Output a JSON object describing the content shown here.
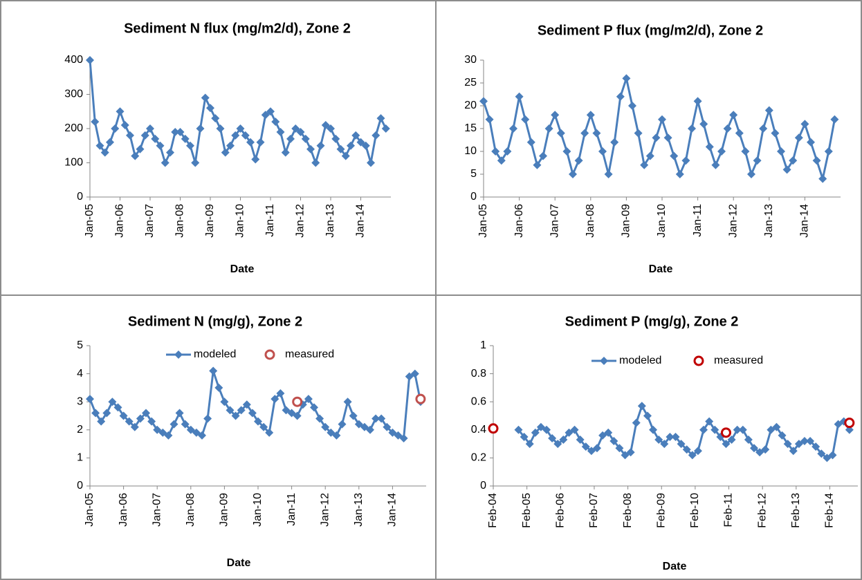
{
  "chart_data": [
    {
      "type": "line",
      "title": "Sediment N flux (mg/m2/d), Zone 2",
      "x_label": "Date",
      "x": [
        "2005-01",
        "2005-03",
        "2005-05",
        "2005-07",
        "2005-09",
        "2005-11",
        "2006-01",
        "2006-03",
        "2006-05",
        "2006-07",
        "2006-09",
        "2006-11",
        "2007-01",
        "2007-03",
        "2007-05",
        "2007-07",
        "2007-09",
        "2007-11",
        "2008-01",
        "2008-03",
        "2008-05",
        "2008-07",
        "2008-09",
        "2008-11",
        "2009-01",
        "2009-03",
        "2009-05",
        "2009-07",
        "2009-09",
        "2009-11",
        "2010-01",
        "2010-03",
        "2010-05",
        "2010-07",
        "2010-09",
        "2010-11",
        "2011-01",
        "2011-03",
        "2011-05",
        "2011-07",
        "2011-09",
        "2011-11",
        "2012-01",
        "2012-03",
        "2012-05",
        "2012-07",
        "2012-09",
        "2012-11",
        "2013-01",
        "2013-03",
        "2013-05",
        "2013-07",
        "2013-09",
        "2013-11",
        "2014-01",
        "2014-03",
        "2014-05",
        "2014-07",
        "2014-09",
        "2014-11"
      ],
      "series": [
        {
          "color": "#4a7ebb",
          "marker": "diamond",
          "line": true,
          "values": [
            400,
            220,
            150,
            130,
            160,
            200,
            250,
            210,
            180,
            120,
            140,
            180,
            200,
            170,
            150,
            100,
            130,
            190,
            190,
            170,
            150,
            100,
            200,
            290,
            260,
            230,
            200,
            130,
            150,
            180,
            200,
            180,
            160,
            110,
            160,
            240,
            250,
            220,
            190,
            130,
            170,
            200,
            190,
            170,
            140,
            100,
            150,
            210,
            200,
            170,
            140,
            120,
            150,
            180,
            160,
            150,
            100,
            180,
            230,
            200
          ]
        }
      ],
      "xlim": [
        "2005-01",
        "2015-01"
      ],
      "xticks": [
        {
          "value": "2005-01",
          "label": "Jan-05"
        },
        {
          "value": "2006-01",
          "label": "Jan-06"
        },
        {
          "value": "2007-01",
          "label": "Jan-07"
        },
        {
          "value": "2008-01",
          "label": "Jan-08"
        },
        {
          "value": "2009-01",
          "label": "Jan-09"
        },
        {
          "value": "2010-01",
          "label": "Jan-10"
        },
        {
          "value": "2011-01",
          "label": "Jan-11"
        },
        {
          "value": "2012-01",
          "label": "Jan-12"
        },
        {
          "value": "2013-01",
          "label": "Jan-13"
        },
        {
          "value": "2014-01",
          "label": "Jan-14"
        }
      ],
      "ylim": [
        0,
        400
      ],
      "yticks": [
        0,
        100,
        200,
        300,
        400
      ],
      "grid": false
    },
    {
      "type": "line",
      "title": "Sediment P flux (mg/m2/d), Zone 2",
      "x_label": "Date",
      "x": [
        "2005-01",
        "2005-03",
        "2005-05",
        "2005-07",
        "2005-09",
        "2005-11",
        "2006-01",
        "2006-03",
        "2006-05",
        "2006-07",
        "2006-09",
        "2006-11",
        "2007-01",
        "2007-03",
        "2007-05",
        "2007-07",
        "2007-09",
        "2007-11",
        "2008-01",
        "2008-03",
        "2008-05",
        "2008-07",
        "2008-09",
        "2008-11",
        "2009-01",
        "2009-03",
        "2009-05",
        "2009-07",
        "2009-09",
        "2009-11",
        "2010-01",
        "2010-03",
        "2010-05",
        "2010-07",
        "2010-09",
        "2010-11",
        "2011-01",
        "2011-03",
        "2011-05",
        "2011-07",
        "2011-09",
        "2011-11",
        "2012-01",
        "2012-03",
        "2012-05",
        "2012-07",
        "2012-09",
        "2012-11",
        "2013-01",
        "2013-03",
        "2013-05",
        "2013-07",
        "2013-09",
        "2013-11",
        "2014-01",
        "2014-03",
        "2014-05",
        "2014-07",
        "2014-09",
        "2014-11"
      ],
      "series": [
        {
          "color": "#4a7ebb",
          "marker": "diamond",
          "line": true,
          "values": [
            21,
            17,
            10,
            8,
            10,
            15,
            22,
            17,
            12,
            7,
            9,
            15,
            18,
            14,
            10,
            5,
            8,
            14,
            18,
            14,
            10,
            5,
            12,
            22,
            26,
            20,
            14,
            7,
            9,
            13,
            17,
            13,
            9,
            5,
            8,
            15,
            21,
            16,
            11,
            7,
            10,
            15,
            18,
            14,
            10,
            5,
            8,
            15,
            19,
            14,
            10,
            6,
            8,
            13,
            16,
            12,
            8,
            4,
            10,
            17
          ]
        }
      ],
      "xlim": [
        "2005-01",
        "2015-01"
      ],
      "xticks": [
        {
          "value": "2005-01",
          "label": "Jan-05"
        },
        {
          "value": "2006-01",
          "label": "Jan-06"
        },
        {
          "value": "2007-01",
          "label": "Jan-07"
        },
        {
          "value": "2008-01",
          "label": "Jan-08"
        },
        {
          "value": "2009-01",
          "label": "Jan-09"
        },
        {
          "value": "2010-01",
          "label": "Jan-10"
        },
        {
          "value": "2011-01",
          "label": "Jan-11"
        },
        {
          "value": "2012-01",
          "label": "Jan-12"
        },
        {
          "value": "2013-01",
          "label": "Jan-13"
        },
        {
          "value": "2014-01",
          "label": "Jan-14"
        }
      ],
      "ylim": [
        0,
        30
      ],
      "yticks": [
        0,
        5,
        10,
        15,
        20,
        25,
        30
      ],
      "grid": false
    },
    {
      "type": "line",
      "title": "Sediment N (mg/g), Zone 2",
      "x_label": "Date",
      "legend": "top",
      "x": [
        "2005-01",
        "2005-03",
        "2005-05",
        "2005-07",
        "2005-09",
        "2005-11",
        "2006-01",
        "2006-03",
        "2006-05",
        "2006-07",
        "2006-09",
        "2006-11",
        "2007-01",
        "2007-03",
        "2007-05",
        "2007-07",
        "2007-09",
        "2007-11",
        "2008-01",
        "2008-03",
        "2008-05",
        "2008-07",
        "2008-09",
        "2008-11",
        "2009-01",
        "2009-03",
        "2009-05",
        "2009-07",
        "2009-09",
        "2009-11",
        "2010-01",
        "2010-03",
        "2010-05",
        "2010-07",
        "2010-09",
        "2010-11",
        "2011-01",
        "2011-03",
        "2011-05",
        "2011-07",
        "2011-09",
        "2011-11",
        "2012-01",
        "2012-03",
        "2012-05",
        "2012-07",
        "2012-09",
        "2012-11",
        "2013-01",
        "2013-03",
        "2013-05",
        "2013-07",
        "2013-09",
        "2013-11",
        "2014-01",
        "2014-03",
        "2014-05",
        "2014-07",
        "2014-09",
        "2014-11"
      ],
      "series": [
        {
          "name": "modeled",
          "color": "#4a7ebb",
          "marker": "diamond",
          "line": true,
          "values": [
            3.1,
            2.6,
            2.3,
            2.6,
            3.0,
            2.8,
            2.5,
            2.3,
            2.1,
            2.4,
            2.6,
            2.3,
            2.0,
            1.9,
            1.8,
            2.2,
            2.6,
            2.2,
            2.0,
            1.9,
            1.8,
            2.4,
            4.1,
            3.5,
            3.0,
            2.7,
            2.5,
            2.7,
            2.9,
            2.6,
            2.3,
            2.1,
            1.9,
            3.1,
            3.3,
            2.7,
            2.6,
            2.5,
            2.9,
            3.1,
            2.8,
            2.4,
            2.1,
            1.9,
            1.8,
            2.2,
            3.0,
            2.5,
            2.2,
            2.1,
            2.0,
            2.4,
            2.4,
            2.1,
            1.9,
            1.8,
            1.7,
            3.9,
            4.0,
            3.0
          ]
        },
        {
          "name": "measured",
          "color": "#c0504d",
          "marker": "circle",
          "line": false,
          "x": [
            "2011-03",
            "2014-11"
          ],
          "values": [
            3.0,
            3.1
          ]
        }
      ],
      "xlim": [
        "2005-01",
        "2015-01"
      ],
      "xticks": [
        {
          "value": "2005-01",
          "label": "Jan-05"
        },
        {
          "value": "2006-01",
          "label": "Jan-06"
        },
        {
          "value": "2007-01",
          "label": "Jan-07"
        },
        {
          "value": "2008-01",
          "label": "Jan-08"
        },
        {
          "value": "2009-01",
          "label": "Jan-09"
        },
        {
          "value": "2010-01",
          "label": "Jan-10"
        },
        {
          "value": "2011-01",
          "label": "Jan-11"
        },
        {
          "value": "2012-01",
          "label": "Jan-12"
        },
        {
          "value": "2013-01",
          "label": "Jan-13"
        },
        {
          "value": "2014-01",
          "label": "Jan-14"
        }
      ],
      "ylim": [
        0,
        5
      ],
      "yticks": [
        0,
        1,
        2,
        3,
        4,
        5
      ],
      "grid": false
    },
    {
      "type": "line",
      "title": "Sediment P (mg/g), Zone 2",
      "x_label": "Date",
      "legend": "top",
      "x": [
        "2004-11",
        "2005-01",
        "2005-03",
        "2005-05",
        "2005-07",
        "2005-09",
        "2005-11",
        "2006-01",
        "2006-03",
        "2006-05",
        "2006-07",
        "2006-09",
        "2006-11",
        "2007-01",
        "2007-03",
        "2007-05",
        "2007-07",
        "2007-09",
        "2007-11",
        "2008-01",
        "2008-03",
        "2008-05",
        "2008-07",
        "2008-09",
        "2008-11",
        "2009-01",
        "2009-03",
        "2009-05",
        "2009-07",
        "2009-09",
        "2009-11",
        "2010-01",
        "2010-03",
        "2010-05",
        "2010-07",
        "2010-09",
        "2010-11",
        "2011-01",
        "2011-03",
        "2011-05",
        "2011-07",
        "2011-09",
        "2011-11",
        "2012-01",
        "2012-03",
        "2012-05",
        "2012-07",
        "2012-09",
        "2012-11",
        "2013-01",
        "2013-03",
        "2013-05",
        "2013-07",
        "2013-09",
        "2013-11",
        "2014-01",
        "2014-03",
        "2014-05",
        "2014-07",
        "2014-09"
      ],
      "series": [
        {
          "name": "modeled",
          "color": "#4a7ebb",
          "marker": "diamond",
          "line": true,
          "values": [
            0.4,
            0.35,
            0.3,
            0.38,
            0.42,
            0.4,
            0.34,
            0.3,
            0.33,
            0.38,
            0.4,
            0.33,
            0.28,
            0.25,
            0.27,
            0.36,
            0.38,
            0.32,
            0.27,
            0.22,
            0.24,
            0.45,
            0.57,
            0.5,
            0.4,
            0.33,
            0.3,
            0.35,
            0.35,
            0.3,
            0.26,
            0.22,
            0.25,
            0.4,
            0.46,
            0.4,
            0.35,
            0.3,
            0.33,
            0.4,
            0.4,
            0.33,
            0.27,
            0.24,
            0.26,
            0.4,
            0.42,
            0.36,
            0.3,
            0.25,
            0.3,
            0.32,
            0.32,
            0.28,
            0.23,
            0.2,
            0.22,
            0.44,
            0.46,
            0.4
          ]
        },
        {
          "name": "measured",
          "color": "#c00000",
          "marker": "circle",
          "line": false,
          "x": [
            "2004-02",
            "2011-01",
            "2014-09"
          ],
          "values": [
            0.41,
            0.38,
            0.45
          ]
        }
      ],
      "xlim": [
        "2004-02",
        "2014-12"
      ],
      "xticks": [
        {
          "value": "2004-02",
          "label": "Feb-04"
        },
        {
          "value": "2005-02",
          "label": "Feb-05"
        },
        {
          "value": "2006-02",
          "label": "Feb-06"
        },
        {
          "value": "2007-02",
          "label": "Feb-07"
        },
        {
          "value": "2008-02",
          "label": "Feb-08"
        },
        {
          "value": "2009-02",
          "label": "Feb-09"
        },
        {
          "value": "2010-02",
          "label": "Feb-10"
        },
        {
          "value": "2011-02",
          "label": "Feb-11"
        },
        {
          "value": "2012-02",
          "label": "Feb-12"
        },
        {
          "value": "2013-02",
          "label": "Feb-13"
        },
        {
          "value": "2014-02",
          "label": "Feb-14"
        }
      ],
      "ylim": [
        0,
        1
      ],
      "yticks": [
        0,
        0.2,
        0.4,
        0.6,
        0.8,
        1
      ],
      "grid": false
    }
  ]
}
